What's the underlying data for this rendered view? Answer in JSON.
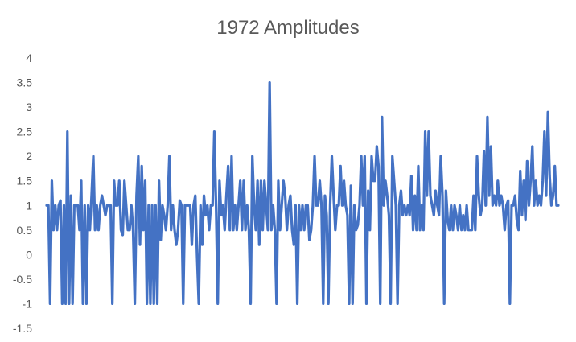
{
  "chart_data": {
    "type": "line",
    "title": "1972 Amplitudes",
    "xlabel": "",
    "ylabel": "",
    "ylim": [
      -1.5,
      4
    ],
    "yticks": [
      4,
      3.5,
      3,
      2.5,
      2,
      1.5,
      1,
      0.5,
      0,
      -0.5,
      -1,
      -1.5
    ],
    "grid": false,
    "legend": "none",
    "series": [
      {
        "color": "#4472C4",
        "values": [
          1,
          1,
          -1,
          1.5,
          0.5,
          1,
          0.5,
          1,
          1.1,
          -1,
          1,
          -1,
          2.5,
          -1,
          1.2,
          -1,
          1,
          1,
          1,
          0.5,
          1.5,
          -1,
          1,
          -1,
          1,
          0.5,
          1.2,
          2,
          0.5,
          1,
          0.5,
          1,
          1.2,
          1,
          0.8,
          1,
          1,
          1,
          -1,
          1.5,
          1,
          1,
          1.5,
          0.5,
          0.4,
          1.5,
          1,
          0.5,
          0.5,
          1,
          0.5,
          -1,
          1.2,
          2,
          0.2,
          1.8,
          0.5,
          1.5,
          -1,
          1,
          -1,
          1,
          -1,
          1,
          -1,
          1.5,
          0.3,
          1,
          0.8,
          0.5,
          1,
          2,
          0.5,
          1,
          0.5,
          0.2,
          0.5,
          1.1,
          1,
          -1,
          1,
          1,
          1,
          1,
          0.2,
          1,
          1.2,
          0,
          -1,
          1,
          0.2,
          1.2,
          0.8,
          1,
          0.5,
          1,
          1,
          2.5,
          1,
          -1,
          1.5,
          0.8,
          1,
          0.5,
          1.2,
          1.8,
          0.5,
          2,
          0.5,
          1,
          0.5,
          1,
          1.5,
          0.5,
          1.5,
          0.5,
          1,
          0.5,
          -1,
          2,
          1,
          0.5,
          1.5,
          0.2,
          1.5,
          0.5,
          1.5,
          1,
          0.5,
          3.5,
          0.5,
          1,
          0.5,
          -1,
          1.5,
          0.5,
          1,
          1.5,
          1.2,
          0.5,
          1,
          1.2,
          0.5,
          0.2,
          1,
          -1,
          1,
          0.5,
          1,
          0.5,
          1,
          1,
          0.3,
          0.5,
          1,
          2,
          1,
          1,
          1.5,
          1,
          -1,
          1.2,
          0.8,
          -1,
          1,
          2,
          1.2,
          0.5,
          1,
          1,
          1.8,
          1,
          1.5,
          1,
          0.8,
          -1,
          1.4,
          -1,
          1,
          0.5,
          0.6,
          1,
          2,
          1,
          2,
          -1,
          1.3,
          0.5,
          2,
          1.5,
          1.5,
          2.2,
          1.8,
          -1,
          2.8,
          1,
          1.5,
          1.2,
          0.8,
          -1,
          2,
          1.5,
          1,
          -1,
          1,
          1.3,
          0.8,
          1,
          0.8,
          1,
          0.8,
          1.6,
          0.5,
          1.2,
          0.5,
          1.8,
          0.5,
          1,
          0.5,
          2.5,
          1.2,
          2.5,
          1.2,
          1,
          0.8,
          1.3,
          1,
          0.8,
          2,
          1.2,
          -1,
          1.3,
          0.7,
          0.5,
          1,
          0.5,
          1,
          0.8,
          0.5,
          1,
          0.5,
          0.8,
          0.5,
          1,
          0.5,
          0.5,
          0.5,
          1.2,
          0.5,
          2,
          1.2,
          0.8,
          1,
          2.1,
          1,
          2.8,
          1.2,
          2.2,
          1,
          1.2,
          1,
          1.5,
          1,
          1.2,
          1,
          0.5,
          1,
          1.1,
          -1,
          1,
          1,
          1.2,
          0.7,
          0.5,
          1.7,
          0.8,
          1.5,
          0.7,
          1.9,
          1,
          1.5,
          2.2,
          1,
          1.5,
          1,
          1.2,
          1,
          1.5,
          2.5,
          1.2,
          2.9,
          1.6,
          1,
          1.2,
          1.8,
          1,
          1
        ]
      }
    ]
  }
}
